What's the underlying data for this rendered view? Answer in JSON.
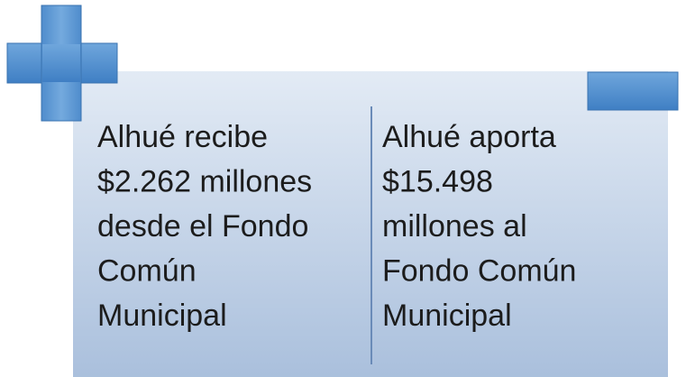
{
  "columns": [
    {
      "lines": [
        "Alhué recibe",
        "$2.262 millones",
        "desde el Fondo",
        "Común",
        "Municipal"
      ]
    },
    {
      "lines": [
        "Alhué aporta",
        "$15.498",
        "millones al",
        "Fondo Común",
        "Municipal"
      ]
    }
  ]
}
